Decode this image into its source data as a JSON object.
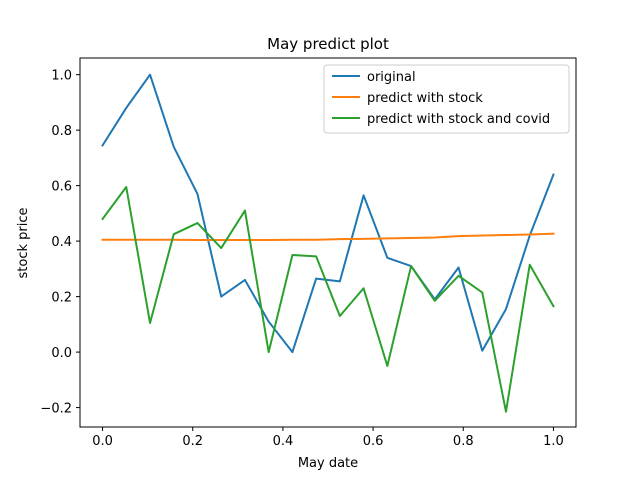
{
  "chart_data": {
    "type": "line",
    "title": "May predict plot",
    "xlabel": "May date",
    "ylabel": "stock price",
    "xlim": [
      -0.05,
      1.05
    ],
    "ylim": [
      -0.27,
      1.06
    ],
    "xticks": [
      0.0,
      0.2,
      0.4,
      0.6,
      0.8,
      1.0
    ],
    "xtick_labels": [
      "0.0",
      "0.2",
      "0.4",
      "0.6",
      "0.8",
      "1.0"
    ],
    "yticks": [
      -0.2,
      0.0,
      0.2,
      0.4,
      0.6,
      0.8,
      1.0
    ],
    "ytick_labels": [
      "−0.2",
      "0.0",
      "0.2",
      "0.4",
      "0.6",
      "0.8",
      "1.0"
    ],
    "grid": false,
    "legend_position": "top-right",
    "x": [
      0.0,
      0.0526,
      0.1053,
      0.1579,
      0.2105,
      0.2632,
      0.3158,
      0.3684,
      0.4211,
      0.4737,
      0.5263,
      0.5789,
      0.6316,
      0.6842,
      0.7368,
      0.7895,
      0.8421,
      0.8947,
      0.9474,
      1.0
    ],
    "series": [
      {
        "name": "original",
        "color": "#1f77b4",
        "values": [
          0.745,
          0.88,
          1.0,
          0.74,
          0.57,
          0.2,
          0.26,
          0.11,
          0.0,
          0.265,
          0.255,
          0.565,
          0.34,
          0.31,
          0.19,
          0.305,
          0.005,
          0.155,
          0.42,
          0.64
        ]
      },
      {
        "name": "predict with stock",
        "color": "#ff7f0e",
        "values": [
          0.405,
          0.405,
          0.405,
          0.405,
          0.404,
          0.404,
          0.404,
          0.404,
          0.405,
          0.405,
          0.407,
          0.408,
          0.41,
          0.411,
          0.413,
          0.418,
          0.42,
          0.422,
          0.424,
          0.427
        ]
      },
      {
        "name": "predict with stock and covid",
        "color": "#2ca02c",
        "values": [
          0.48,
          0.595,
          0.105,
          0.425,
          0.465,
          0.375,
          0.51,
          0.0,
          0.35,
          0.345,
          0.13,
          0.23,
          -0.05,
          0.31,
          0.185,
          0.275,
          0.215,
          -0.215,
          0.315,
          0.165
        ]
      }
    ]
  }
}
